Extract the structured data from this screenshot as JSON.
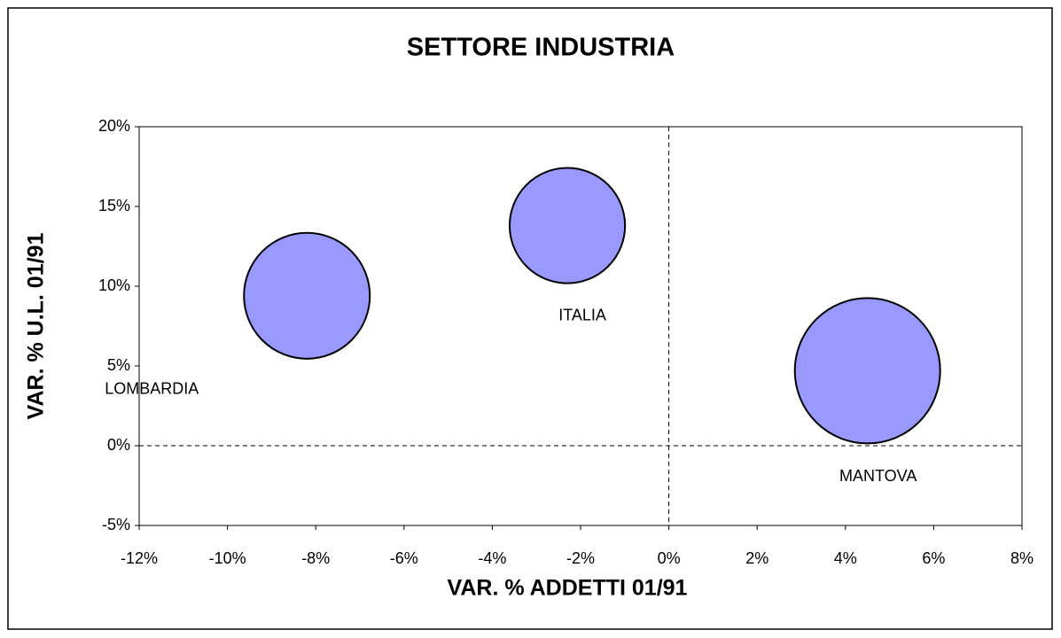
{
  "chart_data": {
    "type": "bubble",
    "title": "SETTORE INDUSTRIA",
    "x_label": "VAR. % ADDETTI 01/91",
    "y_label": "VAR. % U.L. 01/91",
    "series": [
      {
        "name": null,
        "color": "#9999ff",
        "points": [
          {
            "label": "LOMBARDIA",
            "x": -8.2,
            "y": 9.4,
            "size": 75
          },
          {
            "label": "ITALIA",
            "x": -2.3,
            "y": 13.8,
            "size": 63
          },
          {
            "label": "MANTOVA",
            "x": 4.5,
            "y": 4.7,
            "size": 100
          }
        ]
      }
    ],
    "xlim": [
      -12,
      8
    ],
    "xticks": [
      {
        "value": -12,
        "label": "-12%"
      },
      {
        "value": -10,
        "label": "-10%"
      },
      {
        "value": -8,
        "label": "-8%"
      },
      {
        "value": -6,
        "label": "-6%"
      },
      {
        "value": -4,
        "label": "-4%"
      },
      {
        "value": -2,
        "label": "-2%"
      },
      {
        "value": 0,
        "label": "0%"
      },
      {
        "value": 2,
        "label": "2%"
      },
      {
        "value": 4,
        "label": "4%"
      },
      {
        "value": 6,
        "label": "6%"
      },
      {
        "value": 8,
        "label": "8%"
      }
    ],
    "ylim": [
      -5,
      20
    ],
    "yticks": [
      {
        "value": -5,
        "label": "-5%"
      },
      {
        "value": 0,
        "label": "0%"
      },
      {
        "value": 5,
        "label": "5%"
      },
      {
        "value": 10,
        "label": "10%"
      },
      {
        "value": 15,
        "label": "15%"
      },
      {
        "value": 20,
        "label": "20%"
      }
    ]
  }
}
